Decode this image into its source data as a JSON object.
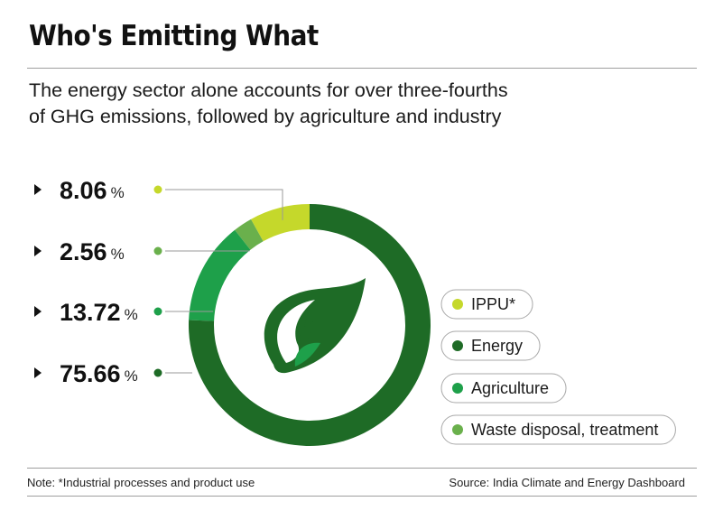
{
  "header": {
    "title": "Who's Emitting What",
    "subtitle_line1": "The energy sector alone accounts for over three-fourths",
    "subtitle_line2": "of GHG emissions, followed by agriculture and industry"
  },
  "footer": {
    "note": "Note: *Industrial processes and product use",
    "source": "Source: India Climate and Energy Dashboard"
  },
  "chart_data": {
    "type": "pie",
    "donut": true,
    "unit": "%",
    "slices": [
      {
        "name": "IPPU*",
        "value": 8.06,
        "color": "#c5d82b"
      },
      {
        "name": "Waste disposal, treatment",
        "value": 2.56,
        "color": "#6ab04c"
      },
      {
        "name": "Agriculture",
        "value": 13.72,
        "color": "#1ea04a"
      },
      {
        "name": "Energy",
        "value": 75.66,
        "color": "#1e6b26"
      }
    ],
    "labels": [
      {
        "text": "8.06",
        "unit": "%",
        "slice": "IPPU*"
      },
      {
        "text": "2.56",
        "unit": "%",
        "slice": "Waste disposal, treatment"
      },
      {
        "text": "13.72",
        "unit": "%",
        "slice": "Agriculture"
      },
      {
        "text": "75.66",
        "unit": "%",
        "slice": "Energy"
      }
    ],
    "legend": [
      "IPPU*",
      "Energy",
      "Agriculture",
      "Waste disposal, treatment"
    ],
    "legend_position": "right",
    "center_icon": "leaf-logo-icon"
  }
}
